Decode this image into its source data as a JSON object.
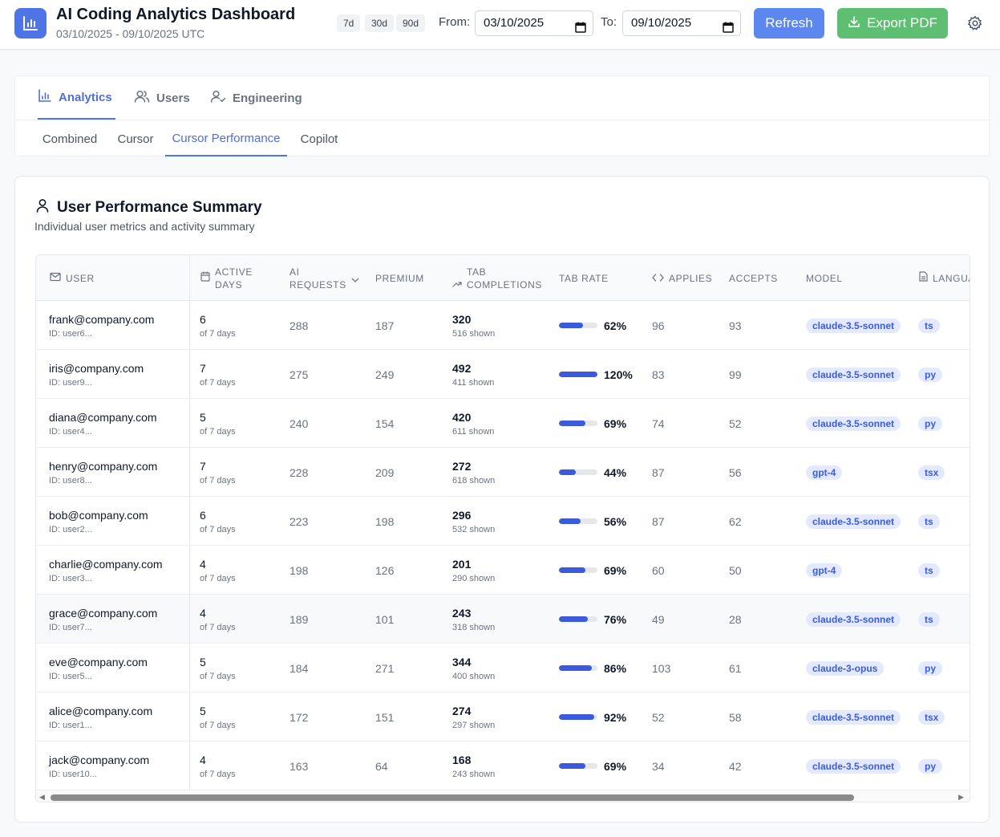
{
  "header": {
    "title": "AI Coding Analytics Dashboard",
    "range": "03/10/2025 - 09/10/2025 UTC",
    "presets": [
      "7d",
      "30d",
      "90d"
    ],
    "from_label": "From:",
    "from_value": "03/10/2025",
    "to_label": "To:",
    "to_value": "09/10/2025",
    "refresh_label": "Refresh",
    "export_label": "Export PDF",
    "icons": {
      "logo": "bar-chart-icon",
      "settings": "gear-icon",
      "export": "download-icon",
      "calendar": "calendar-icon"
    }
  },
  "main_tabs": [
    {
      "label": "Analytics",
      "icon": "bar-chart-icon",
      "active": true
    },
    {
      "label": "Users",
      "icon": "users-icon",
      "active": false
    },
    {
      "label": "Engineering",
      "icon": "user-check-icon",
      "active": false
    }
  ],
  "sub_tabs": [
    {
      "label": "Combined",
      "active": false
    },
    {
      "label": "Cursor",
      "active": false
    },
    {
      "label": "Cursor Performance",
      "active": true
    },
    {
      "label": "Copilot",
      "active": false
    }
  ],
  "summary": {
    "title": "User Performance Summary",
    "subtitle": "Individual user metrics and activity summary",
    "columns": {
      "user": "User",
      "active_days_1": "Active",
      "active_days_2": "Days",
      "ai_requests_1": "AI",
      "ai_requests_2": "Requests",
      "premium": "Premium",
      "tab_completions_1": "Tab",
      "tab_completions_2": "Completions",
      "tab_rate": "Tab Rate",
      "applies": "Applies",
      "accepts": "Accepts",
      "model": "Model",
      "languages": "Langua"
    },
    "rows": [
      {
        "email": "frank@company.com",
        "id": "ID: user6...",
        "days": "6",
        "days_sub": "of 7 days",
        "ai_requests": "288",
        "premium": "187",
        "tab": "320",
        "shown": "516 shown",
        "rate": "62%",
        "rate_fill": 0.62,
        "applies": "96",
        "accepts": "93",
        "model": "claude-3.5-sonnet",
        "lang": "ts"
      },
      {
        "email": "iris@company.com",
        "id": "ID: user9...",
        "days": "7",
        "days_sub": "of 7 days",
        "ai_requests": "275",
        "premium": "249",
        "tab": "492",
        "shown": "411 shown",
        "rate": "120%",
        "rate_fill": 1.0,
        "applies": "83",
        "accepts": "99",
        "model": "claude-3.5-sonnet",
        "lang": "py"
      },
      {
        "email": "diana@company.com",
        "id": "ID: user4...",
        "days": "5",
        "days_sub": "of 7 days",
        "ai_requests": "240",
        "premium": "154",
        "tab": "420",
        "shown": "611 shown",
        "rate": "69%",
        "rate_fill": 0.69,
        "applies": "74",
        "accepts": "52",
        "model": "claude-3.5-sonnet",
        "lang": "py"
      },
      {
        "email": "henry@company.com",
        "id": "ID: user8...",
        "days": "7",
        "days_sub": "of 7 days",
        "ai_requests": "228",
        "premium": "209",
        "tab": "272",
        "shown": "618 shown",
        "rate": "44%",
        "rate_fill": 0.44,
        "applies": "87",
        "accepts": "56",
        "model": "gpt-4",
        "lang": "tsx"
      },
      {
        "email": "bob@company.com",
        "id": "ID: user2...",
        "days": "6",
        "days_sub": "of 7 days",
        "ai_requests": "223",
        "premium": "198",
        "tab": "296",
        "shown": "532 shown",
        "rate": "56%",
        "rate_fill": 0.56,
        "applies": "87",
        "accepts": "62",
        "model": "claude-3.5-sonnet",
        "lang": "ts"
      },
      {
        "email": "charlie@company.com",
        "id": "ID: user3...",
        "days": "4",
        "days_sub": "of 7 days",
        "ai_requests": "198",
        "premium": "126",
        "tab": "201",
        "shown": "290 shown",
        "rate": "69%",
        "rate_fill": 0.69,
        "applies": "60",
        "accepts": "50",
        "model": "gpt-4",
        "lang": "ts"
      },
      {
        "email": "grace@company.com",
        "id": "ID: user7...",
        "days": "4",
        "days_sub": "of 7 days",
        "ai_requests": "189",
        "premium": "101",
        "tab": "243",
        "shown": "318 shown",
        "rate": "76%",
        "rate_fill": 0.76,
        "applies": "49",
        "accepts": "28",
        "model": "claude-3.5-sonnet",
        "lang": "ts"
      },
      {
        "email": "eve@company.com",
        "id": "ID: user5...",
        "days": "5",
        "days_sub": "of 7 days",
        "ai_requests": "184",
        "premium": "271",
        "tab": "344",
        "shown": "400 shown",
        "rate": "86%",
        "rate_fill": 0.86,
        "applies": "103",
        "accepts": "61",
        "model": "claude-3-opus",
        "lang": "py"
      },
      {
        "email": "alice@company.com",
        "id": "ID: user1...",
        "days": "5",
        "days_sub": "of 7 days",
        "ai_requests": "172",
        "premium": "151",
        "tab": "274",
        "shown": "297 shown",
        "rate": "92%",
        "rate_fill": 0.92,
        "applies": "52",
        "accepts": "58",
        "model": "claude-3.5-sonnet",
        "lang": "tsx"
      },
      {
        "email": "jack@company.com",
        "id": "ID: user10...",
        "days": "4",
        "days_sub": "of 7 days",
        "ai_requests": "163",
        "premium": "64",
        "tab": "168",
        "shown": "243 shown",
        "rate": "69%",
        "rate_fill": 0.69,
        "applies": "34",
        "accepts": "42",
        "model": "claude-3.5-sonnet",
        "lang": "py"
      }
    ],
    "highlighted_row": 6
  },
  "colors": {
    "accent": "#4f74e6",
    "refresh": "#5b87ee",
    "export": "#5ebf73",
    "bar_fill": "#3b5bdb",
    "badge_bg": "#e3eaff"
  }
}
